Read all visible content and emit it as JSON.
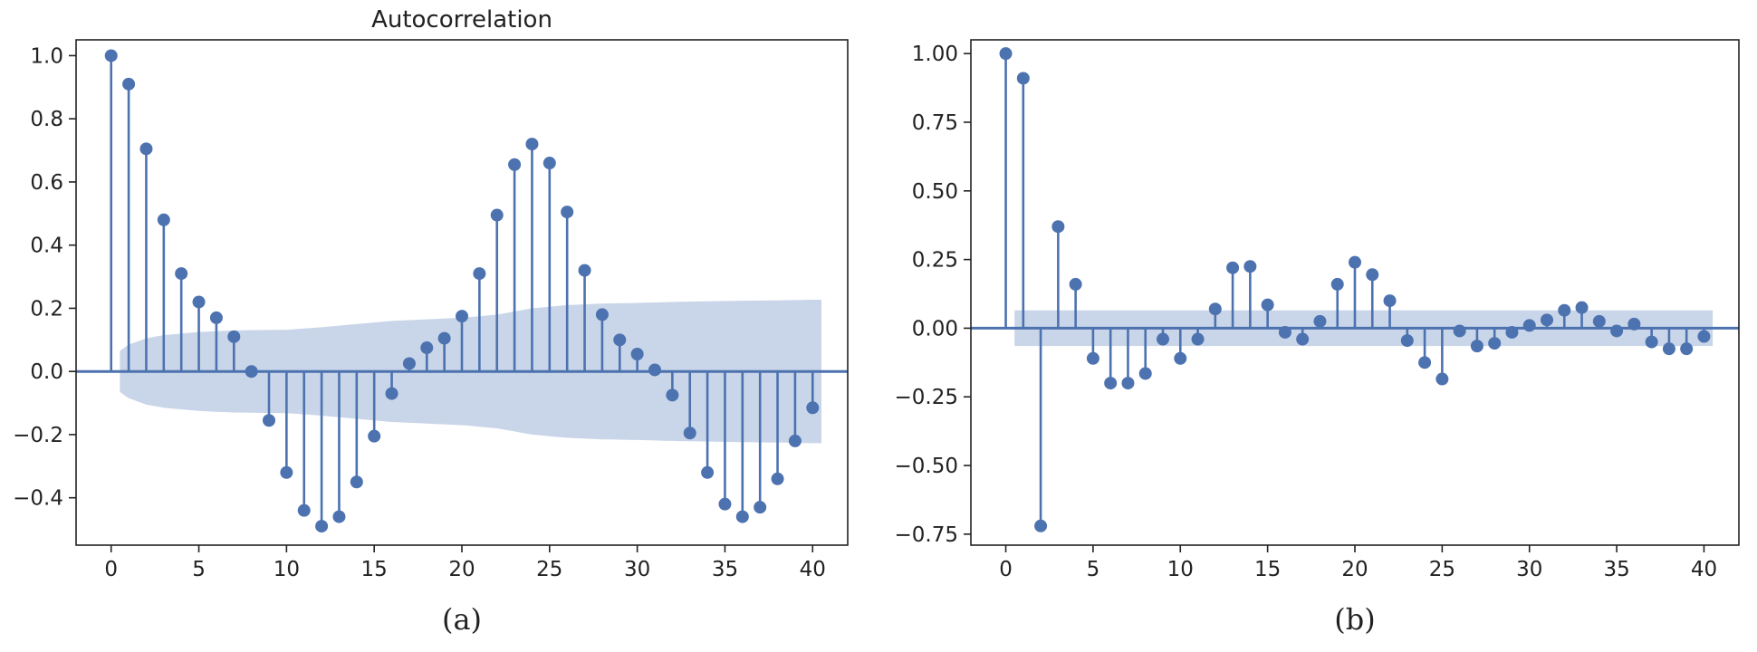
{
  "colors": {
    "stem": "#4c72b0",
    "band": "#c9d5e8",
    "axis": "#222222",
    "background": "#ffffff"
  },
  "chart_data": [
    {
      "id": "a",
      "type": "stem",
      "title": "Autocorrelation",
      "caption": "(a)",
      "xlabel": "",
      "ylabel": "",
      "xlim": [
        -2,
        42
      ],
      "ylim": [
        -0.55,
        1.05
      ],
      "xticks": [
        0,
        5,
        10,
        15,
        20,
        25,
        30,
        35,
        40
      ],
      "xtick_labels": [
        "0",
        "5",
        "10",
        "15",
        "20",
        "25",
        "30",
        "35",
        "40"
      ],
      "yticks": [
        -0.4,
        -0.2,
        0.0,
        0.2,
        0.4,
        0.6,
        0.8,
        1.0
      ],
      "ytick_labels": [
        "−0.4",
        "−0.2",
        "0.0",
        "0.2",
        "0.4",
        "0.6",
        "0.8",
        "1.0"
      ],
      "lags": [
        0,
        1,
        2,
        3,
        4,
        5,
        6,
        7,
        8,
        9,
        10,
        11,
        12,
        13,
        14,
        15,
        16,
        17,
        18,
        19,
        20,
        21,
        22,
        23,
        24,
        25,
        26,
        27,
        28,
        29,
        30,
        31,
        32,
        33,
        34,
        35,
        36,
        37,
        38,
        39,
        40
      ],
      "values": [
        1.0,
        0.91,
        0.705,
        0.48,
        0.31,
        0.22,
        0.17,
        0.11,
        0.0,
        -0.155,
        -0.32,
        -0.44,
        -0.49,
        -0.46,
        -0.35,
        -0.205,
        -0.07,
        0.025,
        0.075,
        0.105,
        0.175,
        0.31,
        0.495,
        0.655,
        0.72,
        0.66,
        0.505,
        0.32,
        0.18,
        0.1,
        0.055,
        0.005,
        -0.075,
        -0.195,
        -0.32,
        -0.42,
        -0.46,
        -0.43,
        -0.34,
        -0.22,
        -0.115
      ],
      "confidence_band": {
        "start_lag": 0.5,
        "end_lag": 40.5,
        "lags": [
          0.5,
          1,
          2,
          3,
          4,
          5,
          7,
          10,
          12,
          14,
          16,
          18,
          20,
          22,
          24,
          26,
          28,
          30,
          32,
          34,
          36,
          38,
          40,
          40.5
        ],
        "upper": [
          0.065,
          0.085,
          0.105,
          0.115,
          0.12,
          0.125,
          0.13,
          0.132,
          0.14,
          0.15,
          0.16,
          0.165,
          0.17,
          0.18,
          0.2,
          0.21,
          0.215,
          0.217,
          0.22,
          0.222,
          0.224,
          0.225,
          0.227,
          0.227
        ]
      }
    },
    {
      "id": "b",
      "type": "stem",
      "title": "",
      "caption": "(b)",
      "xlabel": "",
      "ylabel": "",
      "xlim": [
        -2,
        42
      ],
      "ylim": [
        -0.79,
        1.05
      ],
      "xticks": [
        0,
        5,
        10,
        15,
        20,
        25,
        30,
        35,
        40
      ],
      "xtick_labels": [
        "0",
        "5",
        "10",
        "15",
        "20",
        "25",
        "30",
        "35",
        "40"
      ],
      "yticks": [
        -0.75,
        -0.5,
        -0.25,
        0.0,
        0.25,
        0.5,
        0.75,
        1.0
      ],
      "ytick_labels": [
        "−0.75",
        "−0.50",
        "−0.25",
        "0.00",
        "0.25",
        "0.50",
        "0.75",
        "1.00"
      ],
      "lags": [
        0,
        1,
        2,
        3,
        4,
        5,
        6,
        7,
        8,
        9,
        10,
        11,
        12,
        13,
        14,
        15,
        16,
        17,
        18,
        19,
        20,
        21,
        22,
        23,
        24,
        25,
        26,
        27,
        28,
        29,
        30,
        31,
        32,
        33,
        34,
        35,
        36,
        37,
        38,
        39,
        40
      ],
      "values": [
        1.0,
        0.91,
        -0.72,
        0.37,
        0.16,
        -0.11,
        -0.2,
        -0.2,
        -0.165,
        -0.04,
        -0.11,
        -0.04,
        0.07,
        0.22,
        0.225,
        0.085,
        -0.015,
        -0.04,
        0.025,
        0.16,
        0.24,
        0.195,
        0.1,
        -0.045,
        -0.125,
        -0.185,
        -0.01,
        -0.065,
        -0.055,
        -0.015,
        0.01,
        0.03,
        0.065,
        0.075,
        0.025,
        -0.01,
        0.015,
        -0.05,
        -0.075,
        -0.075,
        -0.03
      ],
      "confidence_band": {
        "start_lag": 0.5,
        "end_lag": 40.5,
        "lags": [
          0.5,
          40.5
        ],
        "upper": [
          0.065,
          0.065
        ]
      }
    }
  ]
}
